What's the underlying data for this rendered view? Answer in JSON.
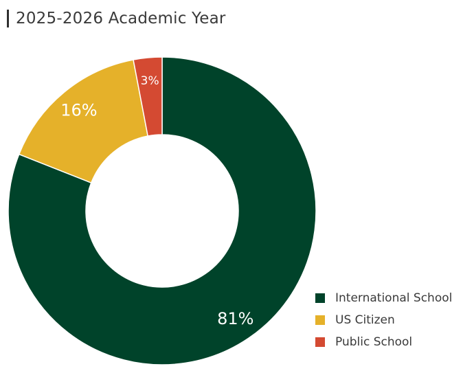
{
  "header": {
    "title": "2025-2026 Academic Year"
  },
  "chart_data": {
    "type": "pie",
    "donut": true,
    "title": "2025-2026 Academic Year",
    "legend_position": "bottom-right",
    "categories": [
      "International School",
      "US Citizen",
      "Public School"
    ],
    "values": [
      81,
      16,
      3
    ],
    "value_labels": [
      "81%",
      "16%",
      "3%"
    ],
    "colors": [
      "#00432a",
      "#e5b12a",
      "#d44a32"
    ]
  }
}
